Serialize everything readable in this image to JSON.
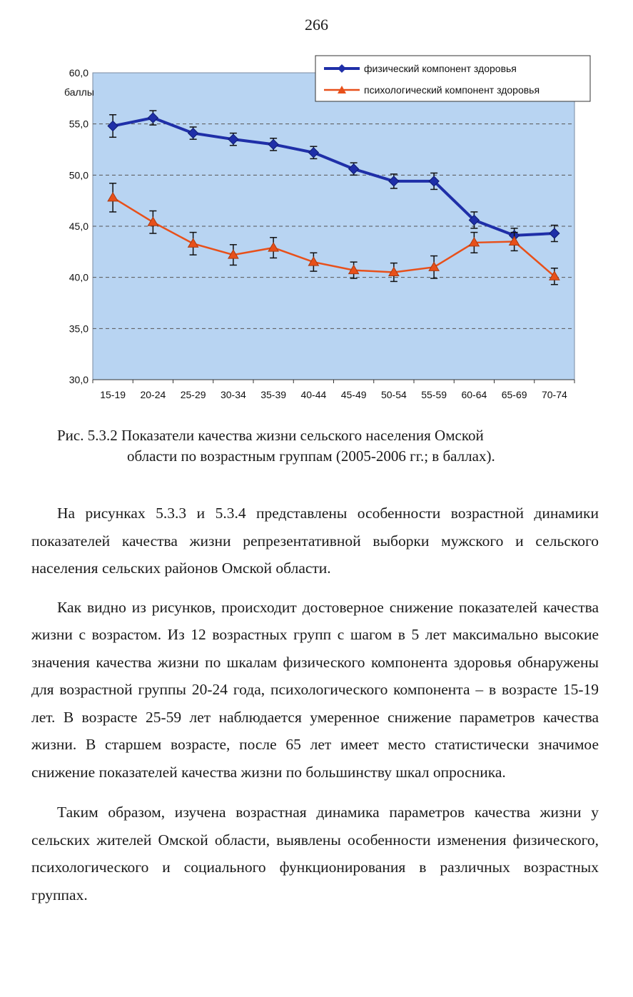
{
  "page": {
    "number": "266"
  },
  "chart_data": {
    "type": "line",
    "ylabel": "баллы",
    "ylim": [
      30,
      60
    ],
    "yticks": [
      "60,0",
      "55,0",
      "50,0",
      "45,0",
      "40,0",
      "35,0",
      "30,0"
    ],
    "ytick_values": [
      60,
      55,
      50,
      45,
      40,
      35,
      30
    ],
    "categories": [
      "15-19",
      "20-24",
      "25-29",
      "30-34",
      "35-39",
      "40-44",
      "45-49",
      "50-54",
      "55-59",
      "60-64",
      "65-69",
      "70-74"
    ],
    "legend_position": "top-right",
    "grid": "horizontal dashed",
    "series": [
      {
        "name": "физический компонент здоровья",
        "color": "#1f2fa8",
        "marker": "diamond",
        "values": [
          54.8,
          55.6,
          54.1,
          53.5,
          53.0,
          52.2,
          50.6,
          49.4,
          49.4,
          45.6,
          44.1,
          44.3
        ],
        "error": [
          1.1,
          0.7,
          0.6,
          0.6,
          0.6,
          0.6,
          0.6,
          0.7,
          0.8,
          0.8,
          0.7,
          0.8
        ]
      },
      {
        "name": "психологический компонент здоровья",
        "color": "#e8501a",
        "marker": "triangle",
        "values": [
          47.8,
          45.4,
          43.3,
          42.2,
          42.9,
          41.5,
          40.7,
          40.5,
          41.0,
          43.4,
          43.5,
          40.1
        ],
        "error": [
          1.4,
          1.1,
          1.1,
          1.0,
          1.0,
          0.9,
          0.8,
          0.9,
          1.1,
          1.0,
          0.9,
          0.8
        ]
      }
    ],
    "colors": {
      "plot_background": "#b8d4f2",
      "grid": "#555555"
    }
  },
  "caption": {
    "line1": "Рис. 5.3.2 Показатели качества жизни сельского населения Омской",
    "line2": "области по возрастным группам (2005-2006 гг.; в баллах)."
  },
  "paragraphs": [
    "На рисунках 5.3.3 и 5.3.4 представлены особенности возрастной динамики показателей качества жизни репрезентативной выборки мужского и сельского населения сельских районов Омской области.",
    "Как видно из рисунков, происходит достоверное снижение показателей качества жизни с возрастом. Из 12 возрастных групп с шагом в 5 лет максимально высокие значения качества жизни по шкалам физического компонента здоровья обнаружены для возрастной группы 20-24 года, психологического компонента – в возрасте 15-19 лет. В возрасте 25-59 лет наблюдается умеренное снижение параметров качества жизни. В старшем возрасте, после 65 лет имеет место статистически значимое снижение показателей качества жизни по большинству шкал опросника.",
    "Таким образом, изучена возрастная динамика параметров качества жизни у сельских жителей Омской области, выявлены особенности изменения физического, психологического и социального функционирования в различных возрастных группах."
  ]
}
